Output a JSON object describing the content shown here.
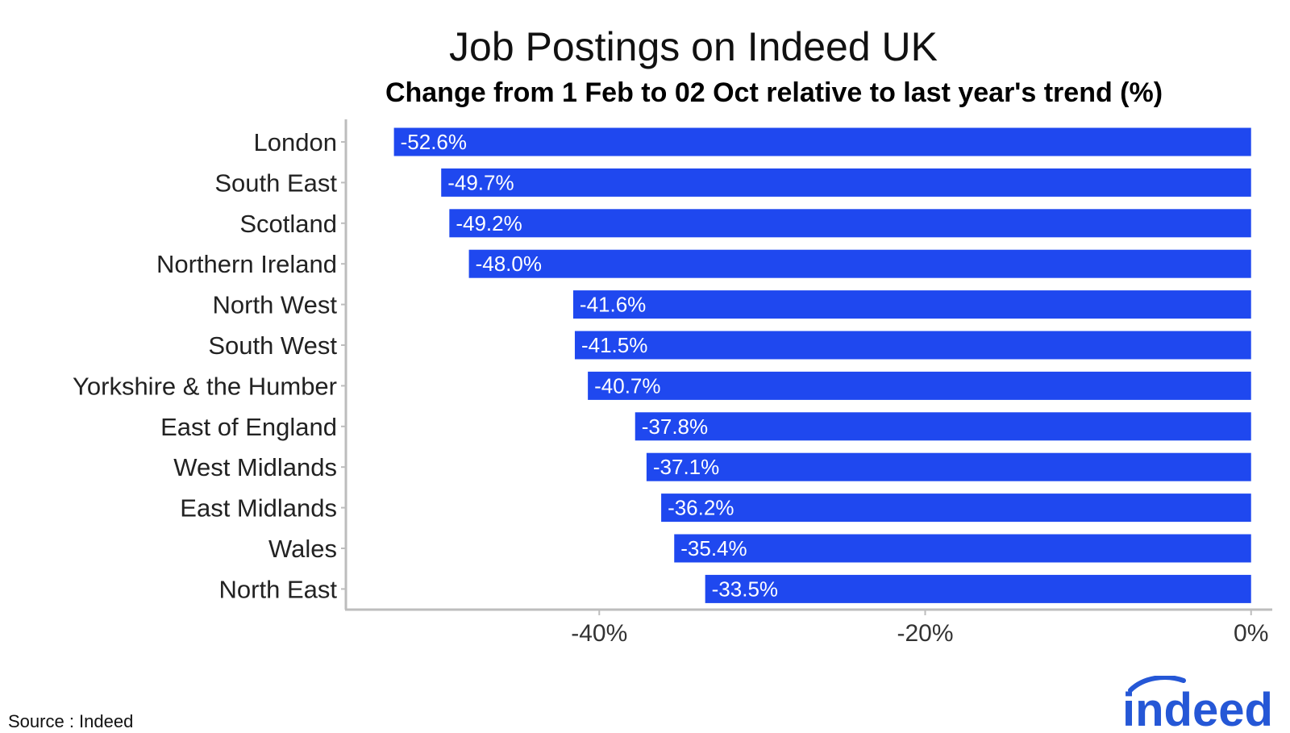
{
  "source": "Source : Indeed",
  "logo_text": "indeed",
  "colors": {
    "bar": "#1f48ef",
    "axis": "#bdbdbd",
    "brand": "#2557d6"
  },
  "chart_data": {
    "type": "bar",
    "orientation": "horizontal",
    "title": "Job Postings on Indeed UK",
    "subtitle": "Change from 1 Feb to 02 Oct relative to last year's trend (%)",
    "xlabel": "",
    "ylabel": "",
    "xlim": [
      -55.5,
      1.3
    ],
    "x_ticks": [
      {
        "value": -40,
        "label": "-40%"
      },
      {
        "value": -20,
        "label": "-20%"
      },
      {
        "value": 0,
        "label": "0%"
      }
    ],
    "grid": false,
    "legend": "none",
    "categories": [
      "London",
      "South East",
      "Scotland",
      "Northern Ireland",
      "North West",
      "South West",
      "Yorkshire & the Humber",
      "East of England",
      "West Midlands",
      "East Midlands",
      "Wales",
      "North East"
    ],
    "values": [
      -52.6,
      -49.7,
      -49.2,
      -48.0,
      -41.6,
      -41.5,
      -40.7,
      -37.8,
      -37.1,
      -36.2,
      -35.4,
      -33.5
    ],
    "value_labels": [
      "-52.6%",
      "-49.7%",
      "-49.2%",
      "-48.0%",
      "-41.6%",
      "-41.5%",
      "-40.7%",
      "-37.8%",
      "-37.1%",
      "-36.2%",
      "-35.4%",
      "-33.5%"
    ]
  }
}
